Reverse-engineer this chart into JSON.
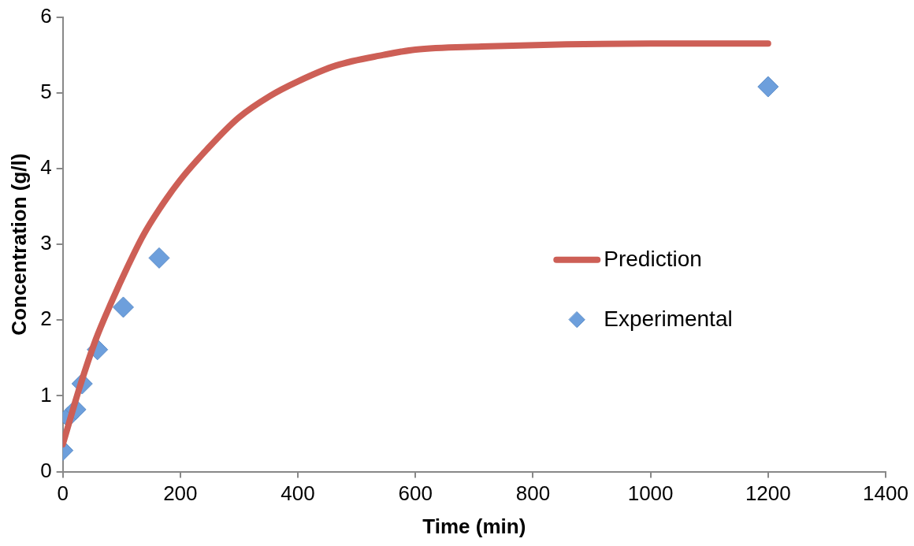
{
  "chart_data": {
    "type": "scatter",
    "xlabel": "Time (min)",
    "ylabel": "Concentration (g/l)",
    "xlim": [
      0,
      1400
    ],
    "xticks": [
      0,
      200,
      400,
      600,
      800,
      1000,
      1200,
      1400
    ],
    "ylim": [
      0,
      6
    ],
    "yticks": [
      0,
      1,
      2,
      3,
      4,
      5,
      6
    ],
    "grid": false,
    "legend": "right",
    "series": [
      {
        "name": "Prediction",
        "type": "line",
        "color": "#cd5f56",
        "marker": "none",
        "line_style": "solid",
        "x": [
          0,
          29,
          56,
          83,
          110,
          137,
          164,
          200,
          245,
          299,
          353,
          400,
          465,
          546,
          600,
          713,
          857,
          1000,
          1200
        ],
        "values": [
          0.36,
          1.12,
          1.74,
          2.24,
          2.7,
          3.12,
          3.46,
          3.85,
          4.25,
          4.67,
          4.96,
          5.15,
          5.36,
          5.5,
          5.57,
          5.61,
          5.64,
          5.65,
          5.65
        ]
      },
      {
        "name": "Experimental",
        "color": "#6d9fdc",
        "marker": "diamond",
        "x": [
          0,
          9,
          22,
          33,
          59,
          103,
          164,
          1200
        ],
        "values": [
          0.28,
          0.72,
          0.82,
          1.16,
          1.61,
          2.17,
          2.82,
          5.08
        ]
      }
    ]
  }
}
